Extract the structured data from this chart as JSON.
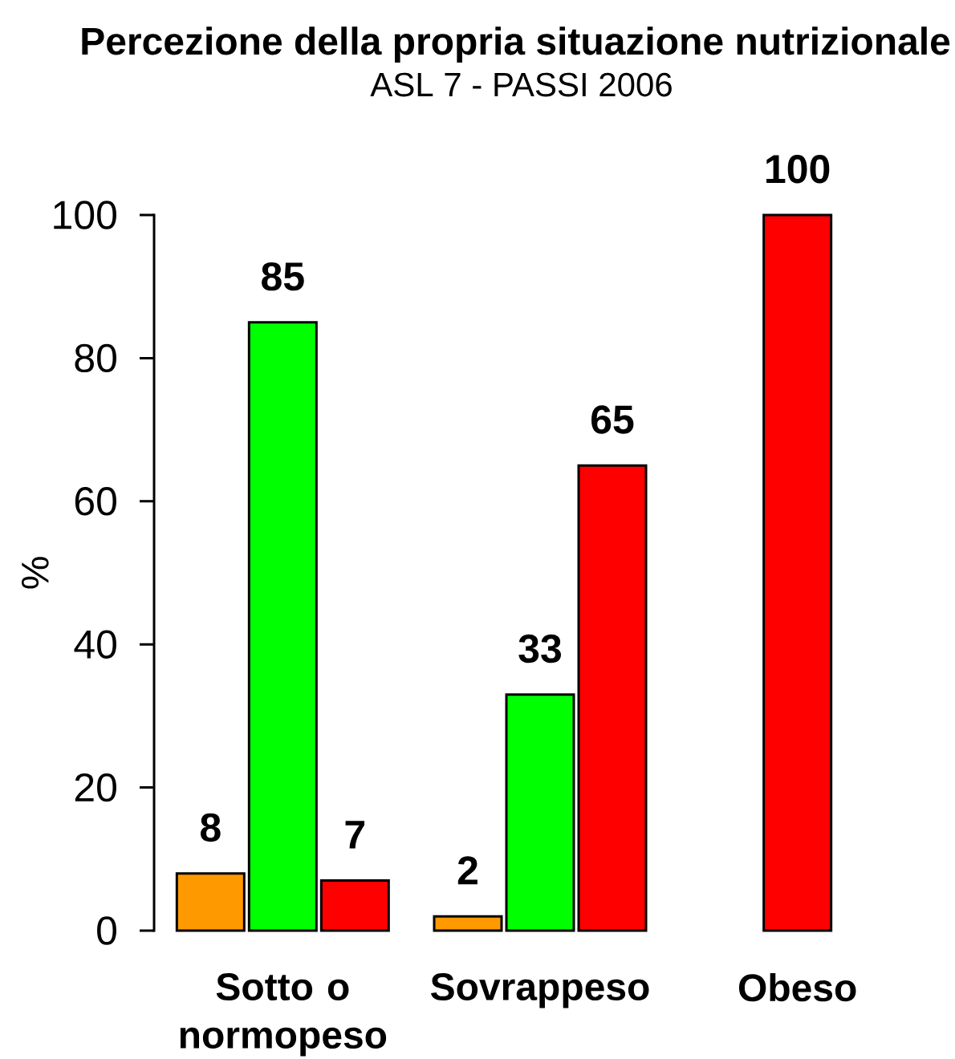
{
  "chart_data": {
    "type": "bar",
    "title": "Percezione della propria situazione nutrizionale",
    "subtitle": "ASL 7 - PASSI 2006",
    "ylabel": "%",
    "categories": [
      "Sotto o normopeso",
      "Sovrappeso",
      "Obeso"
    ],
    "series": [
      {
        "color": "#ff9900",
        "values": [
          8,
          2,
          null
        ]
      },
      {
        "color": "#00ff00",
        "values": [
          85,
          33,
          null
        ]
      },
      {
        "color": "#ff0000",
        "values": [
          7,
          65,
          100
        ]
      }
    ],
    "ylim": [
      0,
      100
    ],
    "yticks": [
      0,
      20,
      40,
      60,
      80,
      100
    ],
    "data_labels": true
  }
}
